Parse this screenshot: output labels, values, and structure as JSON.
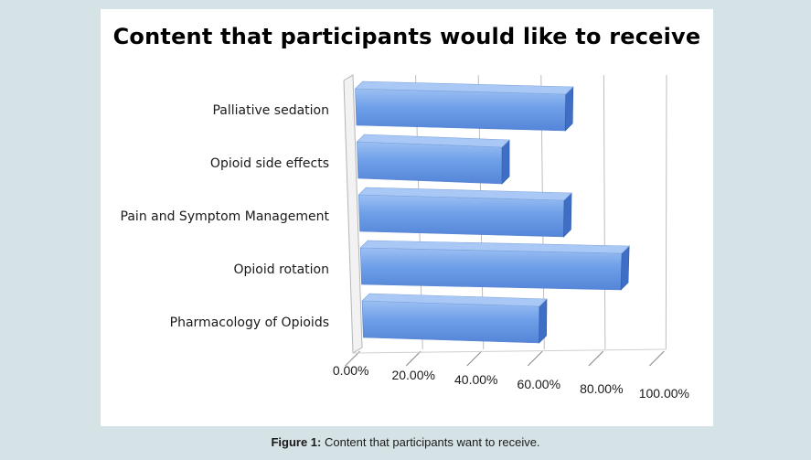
{
  "chart_data": {
    "type": "bar",
    "orientation": "horizontal",
    "style": "3d",
    "title": "Content that participants would like to receive",
    "categories": [
      "Palliative sedation",
      "Opioid side effects",
      "Pain and Symptom Management",
      "Opioid rotation",
      "Pharmacology of Opioids"
    ],
    "values": [
      70,
      49,
      70,
      90,
      62
    ],
    "xlim": [
      0,
      100
    ],
    "x_ticks": [
      "0.00%",
      "20.00%",
      "40.00%",
      "60.00%",
      "80.00%",
      "100.00%"
    ],
    "grid": true,
    "legend": "none",
    "colors": {
      "bar_front": "#6e9fe8",
      "bar_top": "#a9c8f5",
      "bar_side": "#3e6ec6",
      "grid": "#bdbdbd",
      "background": "#ffffff",
      "page": "#d6e3e6"
    }
  },
  "caption": {
    "label": "Figure 1:",
    "text": " Content that participants want to receive."
  }
}
